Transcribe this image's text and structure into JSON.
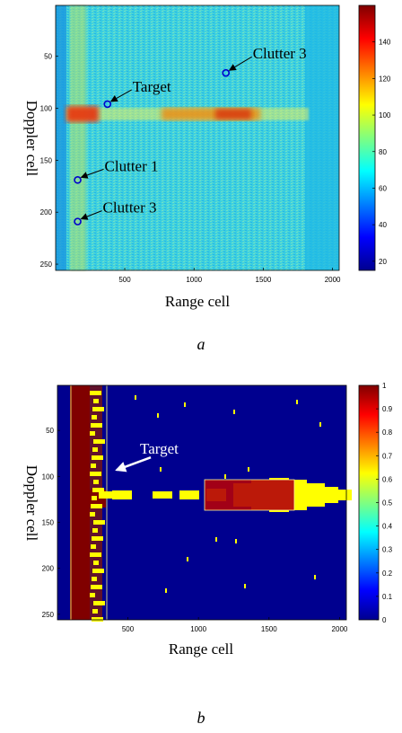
{
  "chart_data": [
    {
      "type": "heatmap",
      "panel_label": "a",
      "xlabel": "Range cell",
      "ylabel": "Doppler cell",
      "xlim": [
        1,
        2048
      ],
      "ylim": [
        1,
        256
      ],
      "x_ticks": [
        500,
        1000,
        1500,
        2000
      ],
      "y_ticks": [
        50,
        100,
        150,
        200,
        250
      ],
      "colorbar": {
        "min": 15,
        "max": 160,
        "ticks": [
          20,
          40,
          60,
          80,
          100,
          120,
          140
        ]
      },
      "annotations": [
        {
          "text": "Clutter 3",
          "x": 1230,
          "y": 66
        },
        {
          "text": "Target",
          "x": 375,
          "y": 96
        },
        {
          "text": "Clutter 1",
          "x": 160,
          "y": 169
        },
        {
          "text": "Clutter 3",
          "x": 160,
          "y": 209
        }
      ],
      "colors": {
        "marker": "#0000cc"
      }
    },
    {
      "type": "heatmap",
      "panel_label": "b",
      "xlabel": "Range cell",
      "ylabel": "Doppler cell",
      "xlim": [
        1,
        2048
      ],
      "ylim": [
        1,
        256
      ],
      "x_ticks": [
        500,
        1000,
        1500,
        2000
      ],
      "y_ticks": [
        50,
        100,
        150,
        200,
        250
      ],
      "colorbar": {
        "min": 0,
        "max": 1,
        "ticks": [
          0,
          0.1,
          0.2,
          0.3,
          0.4,
          0.5,
          0.6,
          0.7,
          0.8,
          0.9,
          1
        ]
      },
      "annotations": [
        {
          "text": "Target",
          "x": 370,
          "y": 93
        }
      ],
      "colors": {
        "arrow": "#ffffff",
        "text": "#ffffff"
      }
    }
  ]
}
